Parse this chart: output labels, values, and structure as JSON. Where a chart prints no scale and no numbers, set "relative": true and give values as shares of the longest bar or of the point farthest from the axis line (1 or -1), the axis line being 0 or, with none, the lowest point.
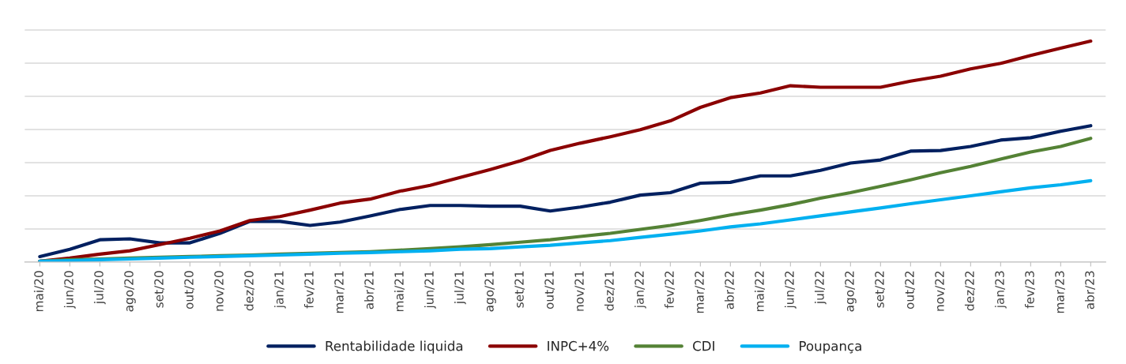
{
  "chart_data": {
    "type": "line",
    "relative": true,
    "grid": "y",
    "legend": "bottom",
    "tick_labels": "x",
    "marker": "none",
    "line_style": "solid",
    "categories": [
      "mai/20",
      "jun/20",
      "jul/20",
      "ago/20",
      "set/20",
      "out/20",
      "nov/20",
      "dez/20",
      "jan/21",
      "fev/21",
      "mar/21",
      "abr/21",
      "mai/21",
      "jun/21",
      "jul/21",
      "ago/21",
      "set/21",
      "out/21",
      "nov/21",
      "dez/21",
      "jan/22",
      "fev/22",
      "mar/22",
      "abr/22",
      "mai/22",
      "jun/22",
      "jul/22",
      "ago/22",
      "set/22",
      "out/22",
      "nov/22",
      "dez/22",
      "jan/23",
      "fev/23",
      "mar/23",
      "abr/23"
    ],
    "series": [
      {
        "name": "Rentabilidade liquida",
        "color": "#002060",
        "values": [
          0.025,
          0.058,
          0.101,
          0.105,
          0.087,
          0.087,
          0.13,
          0.184,
          0.184,
          0.166,
          0.181,
          0.209,
          0.238,
          0.256,
          0.256,
          0.253,
          0.253,
          0.231,
          0.249,
          0.271,
          0.303,
          0.314,
          0.357,
          0.361,
          0.39,
          0.39,
          0.415,
          0.448,
          0.462,
          0.502,
          0.505,
          0.523,
          0.552,
          0.563,
          0.592,
          0.617
        ]
      },
      {
        "name": "INPC+4%",
        "color": "#8b0000",
        "values": [
          0.004,
          0.018,
          0.036,
          0.051,
          0.079,
          0.108,
          0.141,
          0.188,
          0.206,
          0.235,
          0.267,
          0.285,
          0.321,
          0.347,
          0.383,
          0.419,
          0.458,
          0.505,
          0.538,
          0.567,
          0.599,
          0.639,
          0.7,
          0.744,
          0.765,
          0.798,
          0.791,
          0.791,
          0.791,
          0.819,
          0.841,
          0.874,
          0.899,
          0.935,
          0.968,
          1
        ]
      },
      {
        "name": "CDI",
        "color": "#548235",
        "values": [
          0.004,
          0.011,
          0.014,
          0.018,
          0.022,
          0.025,
          0.029,
          0.032,
          0.036,
          0.04,
          0.043,
          0.047,
          0.054,
          0.061,
          0.069,
          0.079,
          0.09,
          0.101,
          0.116,
          0.13,
          0.148,
          0.166,
          0.188,
          0.213,
          0.235,
          0.26,
          0.289,
          0.314,
          0.343,
          0.372,
          0.404,
          0.433,
          0.466,
          0.498,
          0.523,
          0.56
        ]
      },
      {
        "name": "Poupança",
        "color": "#00b0f0",
        "values": [
          0.004,
          0.007,
          0.011,
          0.014,
          0.018,
          0.022,
          0.025,
          0.029,
          0.032,
          0.036,
          0.04,
          0.043,
          0.047,
          0.051,
          0.058,
          0.061,
          0.069,
          0.076,
          0.087,
          0.097,
          0.112,
          0.126,
          0.141,
          0.159,
          0.173,
          0.191,
          0.209,
          0.227,
          0.245,
          0.264,
          0.282,
          0.3,
          0.318,
          0.336,
          0.35,
          0.368
        ]
      }
    ]
  }
}
